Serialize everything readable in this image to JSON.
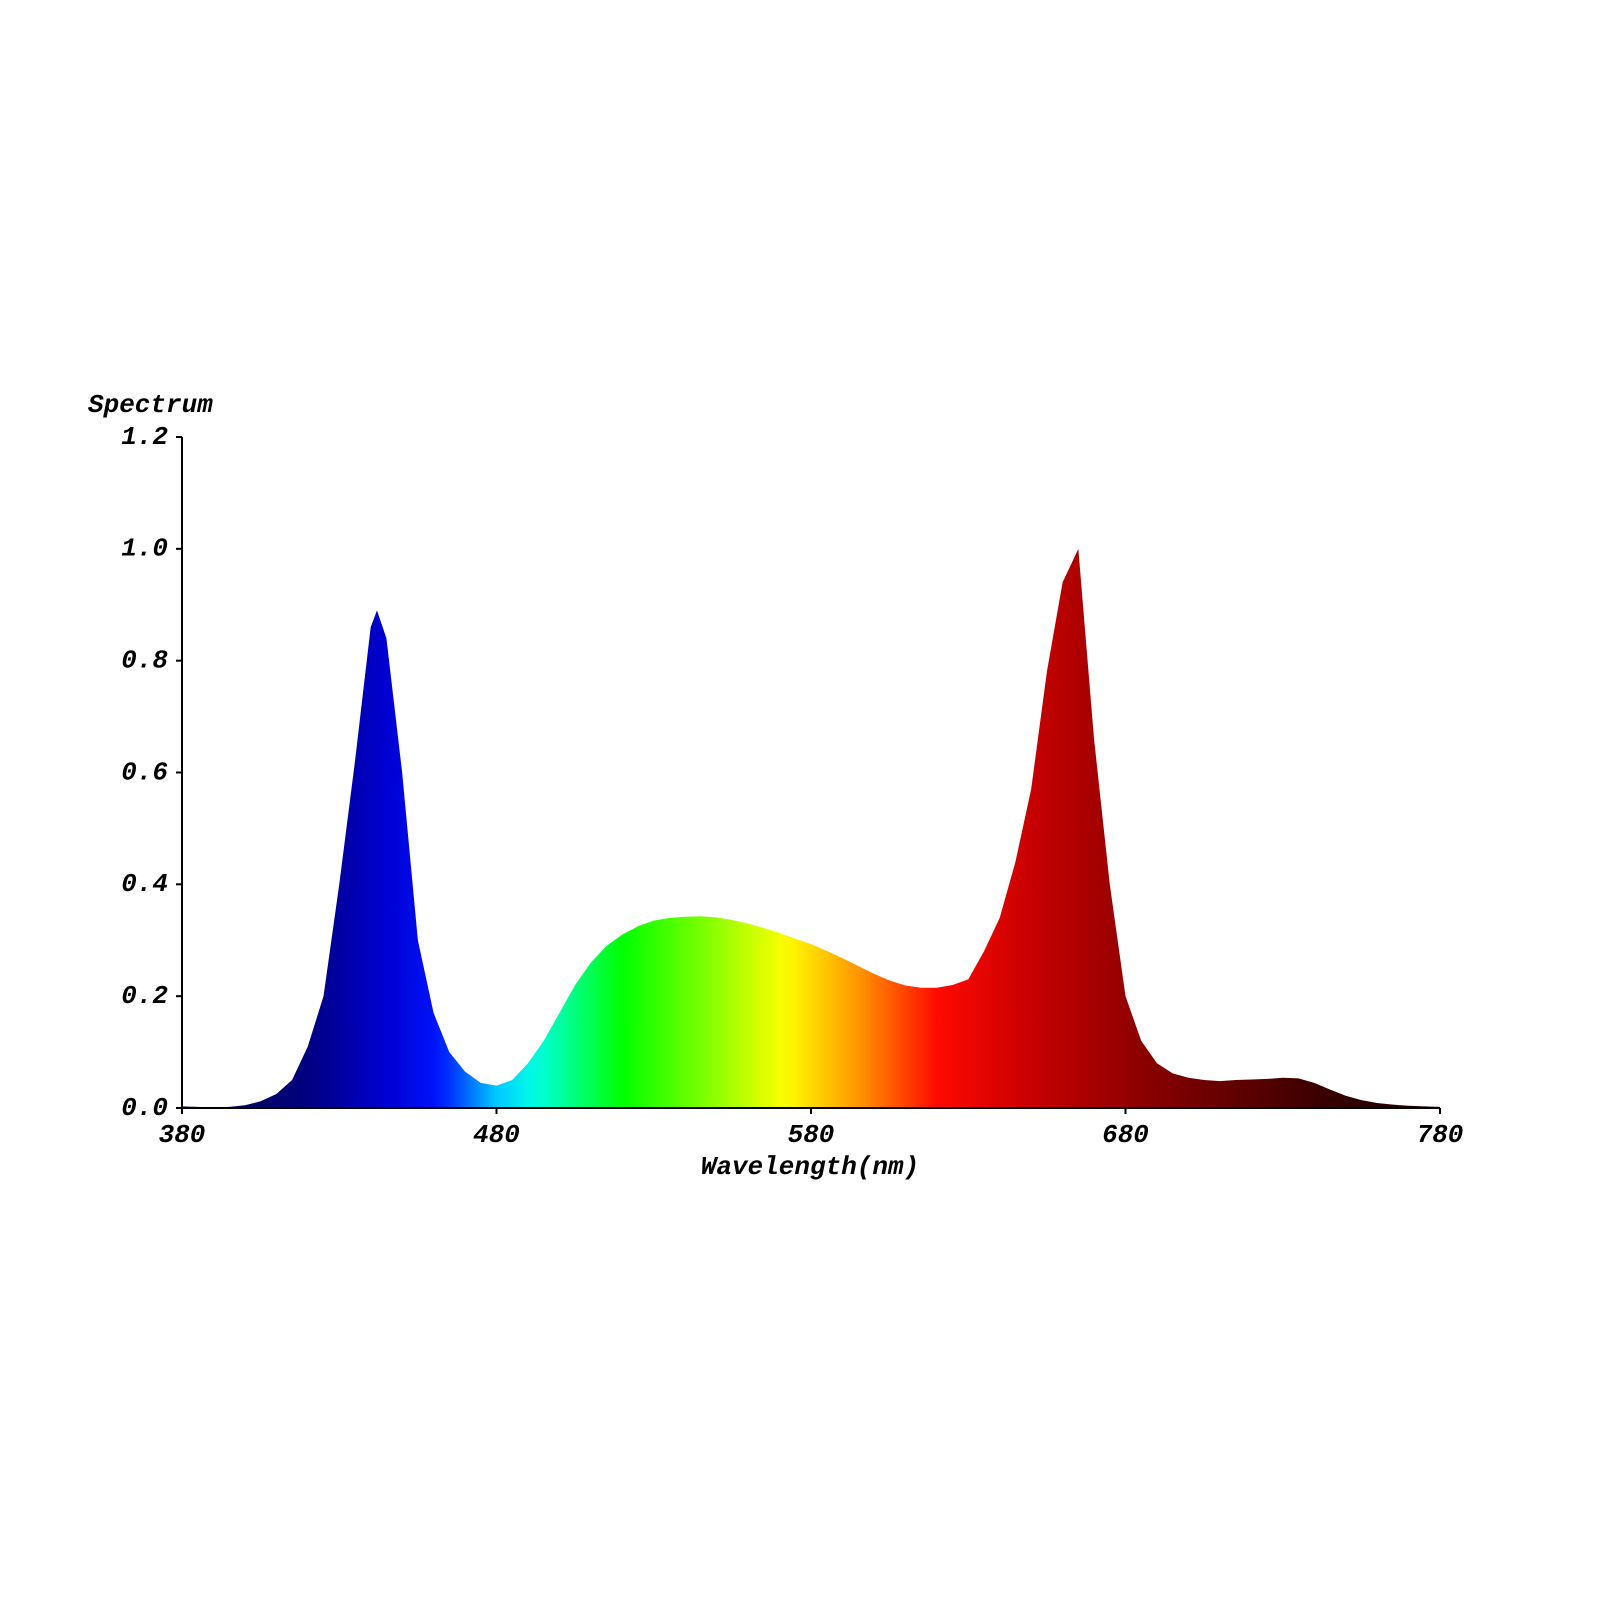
{
  "chart_data": {
    "type": "area",
    "y_label": "Spectrum",
    "x_label": "Wavelength(nm)",
    "x": [
      380,
      385,
      390,
      395,
      400,
      405,
      410,
      415,
      420,
      425,
      430,
      435,
      440,
      442,
      445,
      450,
      455,
      460,
      465,
      470,
      475,
      480,
      485,
      490,
      495,
      500,
      505,
      510,
      515,
      520,
      525,
      530,
      535,
      540,
      545,
      550,
      555,
      560,
      565,
      570,
      575,
      580,
      585,
      590,
      595,
      600,
      605,
      610,
      615,
      620,
      625,
      630,
      635,
      640,
      645,
      650,
      655,
      660,
      665,
      670,
      675,
      680,
      685,
      690,
      695,
      700,
      705,
      710,
      715,
      720,
      725,
      730,
      735,
      740,
      745,
      750,
      755,
      760,
      765,
      770,
      775,
      780
    ],
    "values": [
      0.003,
      0.002,
      0.001,
      0.002,
      0.005,
      0.012,
      0.025,
      0.05,
      0.11,
      0.2,
      0.4,
      0.62,
      0.86,
      0.89,
      0.84,
      0.6,
      0.3,
      0.17,
      0.1,
      0.065,
      0.045,
      0.04,
      0.05,
      0.08,
      0.12,
      0.17,
      0.22,
      0.26,
      0.29,
      0.31,
      0.325,
      0.335,
      0.34,
      0.342,
      0.343,
      0.341,
      0.336,
      0.33,
      0.322,
      0.313,
      0.303,
      0.293,
      0.281,
      0.268,
      0.254,
      0.24,
      0.228,
      0.219,
      0.215,
      0.215,
      0.22,
      0.23,
      0.28,
      0.34,
      0.44,
      0.57,
      0.78,
      0.94,
      1.0,
      0.66,
      0.4,
      0.2,
      0.12,
      0.08,
      0.062,
      0.054,
      0.05,
      0.048,
      0.05,
      0.051,
      0.052,
      0.054,
      0.053,
      0.045,
      0.033,
      0.022,
      0.014,
      0.009,
      0.006,
      0.004,
      0.003,
      0.002
    ],
    "xlim": [
      380,
      780
    ],
    "xticks": [
      380,
      480,
      580,
      680,
      780
    ],
    "ylim": [
      0,
      1.2
    ],
    "yticks": [
      {
        "value": 0,
        "label": "0.0"
      },
      0.2,
      0.4,
      0.6,
      0.8,
      {
        "value": 1,
        "label": "1.0"
      },
      1.2
    ],
    "grid": false
  }
}
